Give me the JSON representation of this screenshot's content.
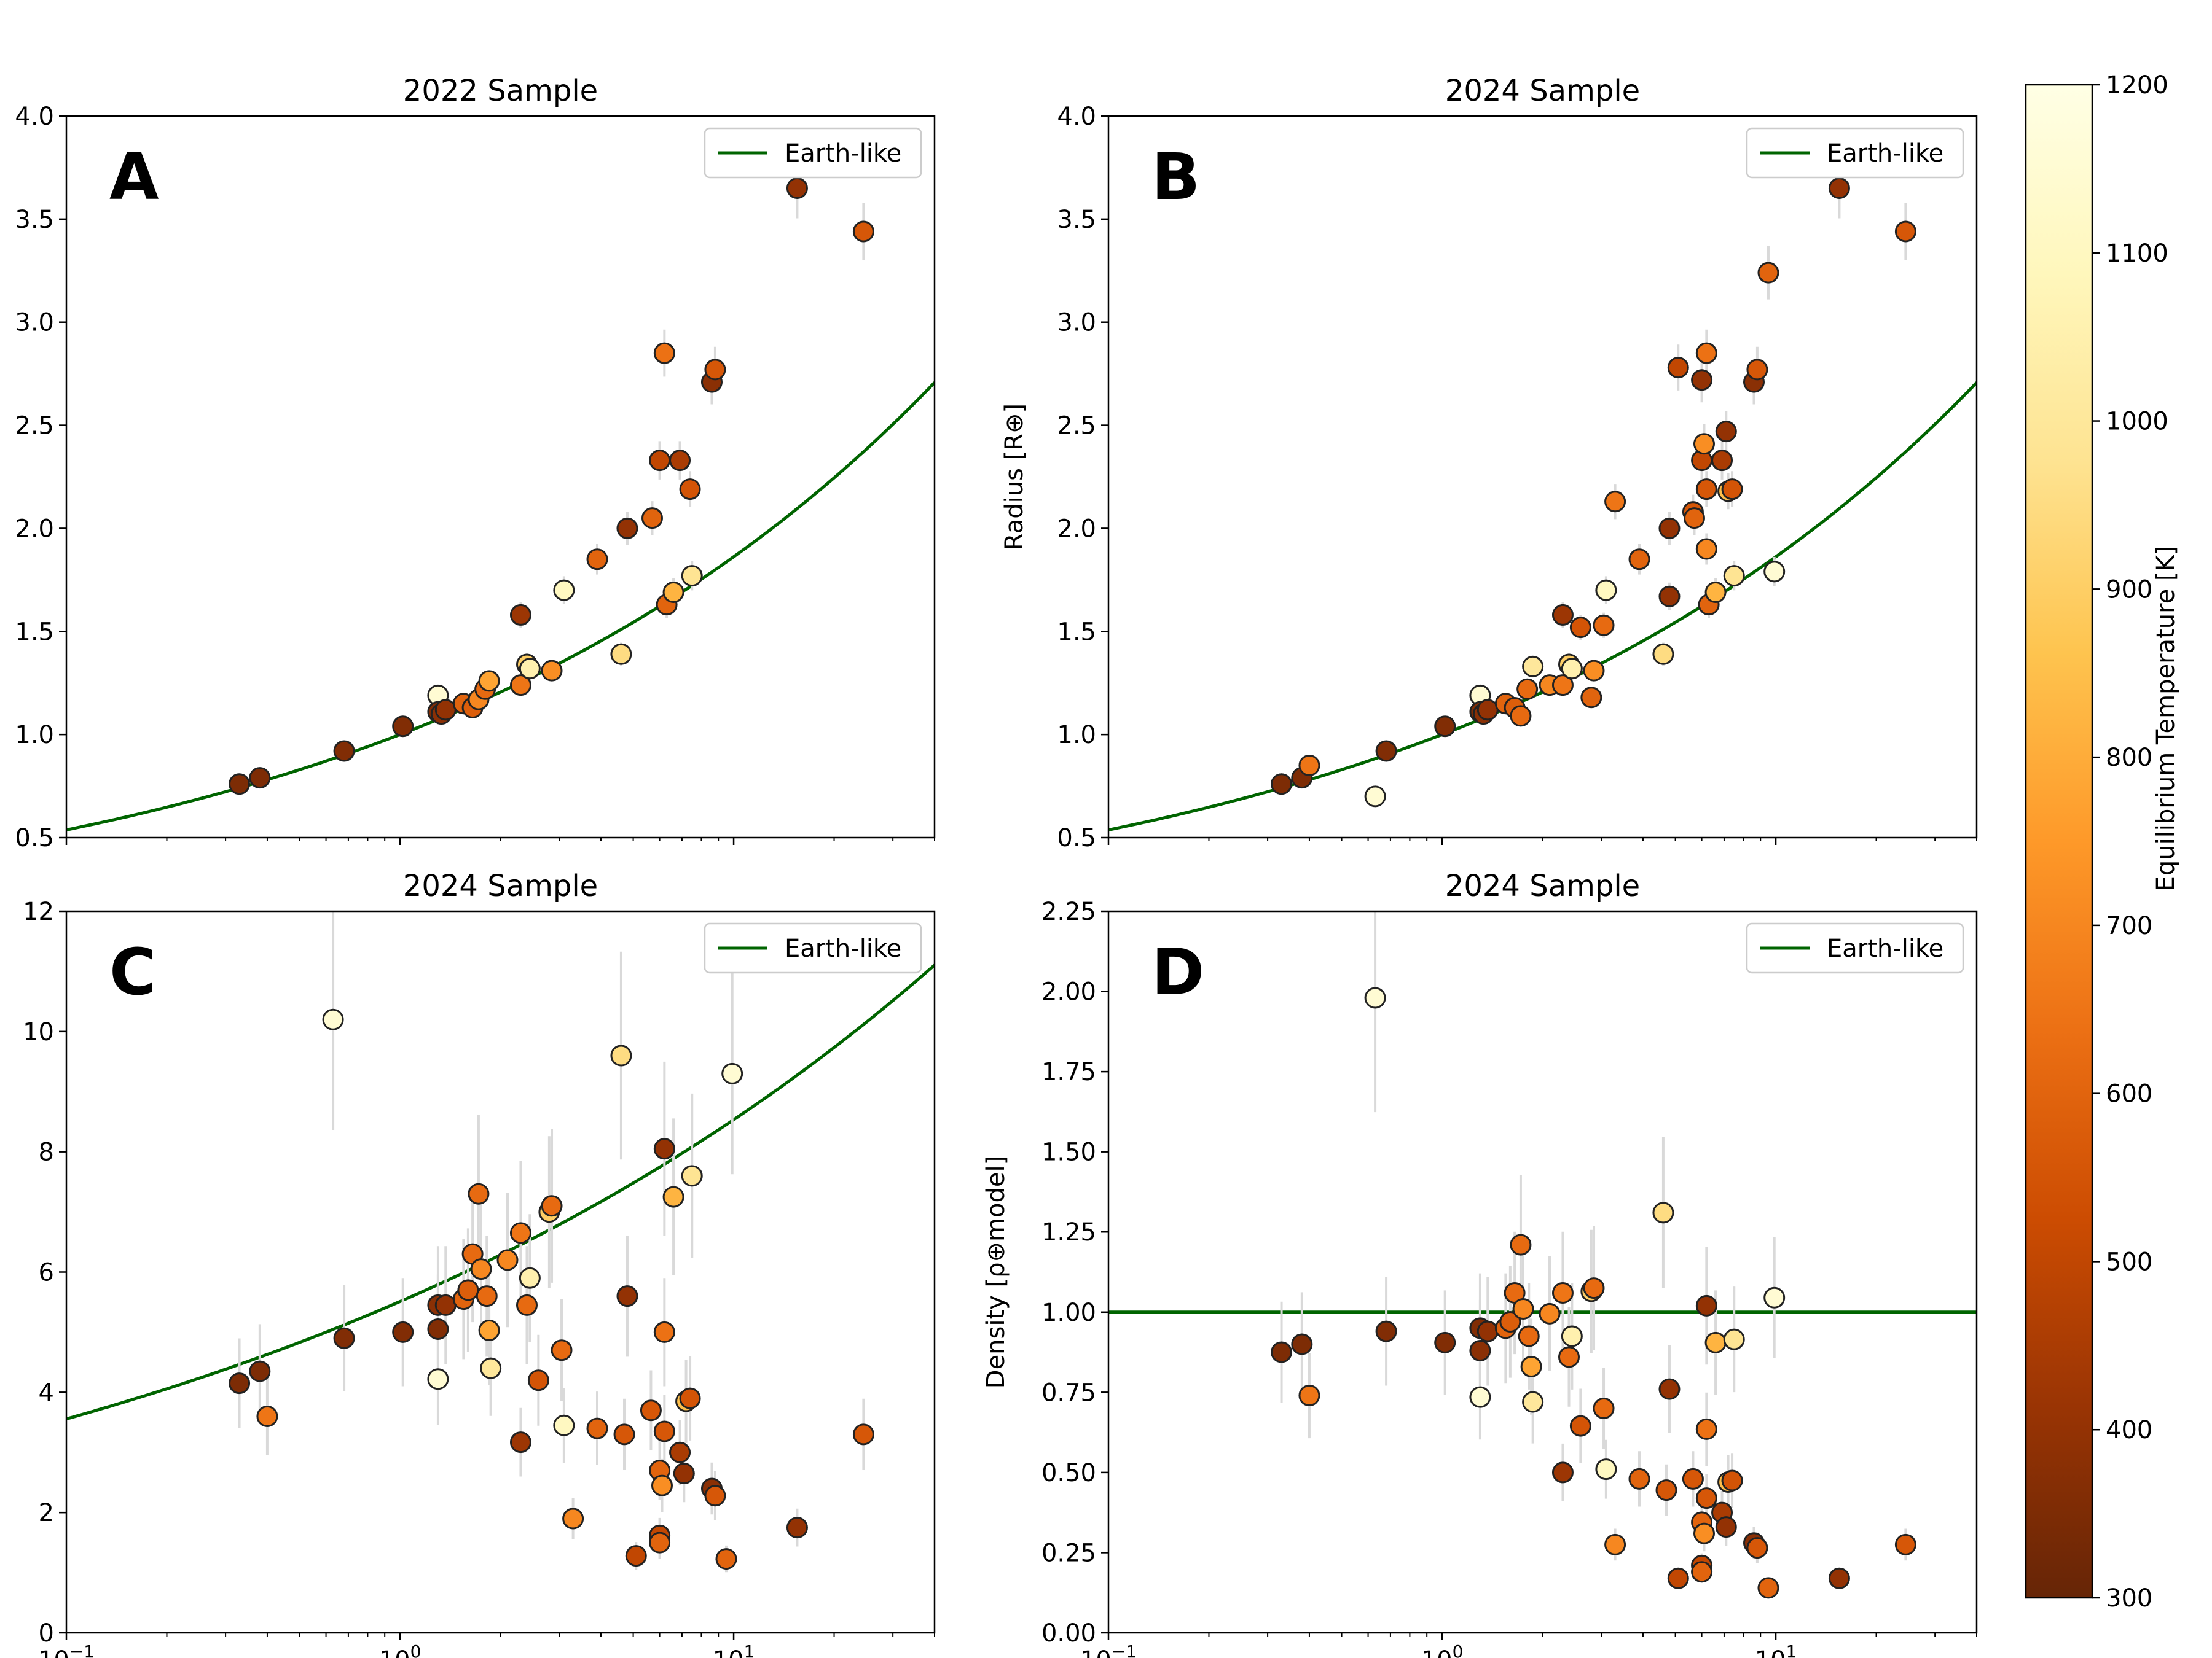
{
  "colorbar": {
    "label": "Equilibrium Temperature [K]",
    "min": 300,
    "max": 1200,
    "ticks": [
      300,
      400,
      500,
      600,
      700,
      800,
      900,
      1000,
      1100,
      1200
    ],
    "colormap": "YlOrBr (reversed)",
    "stops": [
      "#662506",
      "#993404",
      "#cc4c02",
      "#ec7014",
      "#fe9929",
      "#fec44f",
      "#fee391",
      "#fff7bc",
      "#ffffe5"
    ]
  },
  "x_axis": {
    "scale": "log",
    "range": [
      0.1,
      40
    ],
    "tick_labels": [
      {
        "value": 0.1,
        "base": "10",
        "exp": "−1"
      },
      {
        "value": 1,
        "base": "10",
        "exp": "0"
      },
      {
        "value": 10,
        "base": "10",
        "exp": "1"
      }
    ]
  },
  "legend_label": "Earth-like",
  "model_color": "#006400",
  "chart_data": [
    {
      "id": "A",
      "type": "scatter",
      "letter": "A",
      "title": "2022 Sample",
      "ylabel": "",
      "ylim": [
        0.5,
        4.0
      ],
      "ytick_labels": [
        "0.5",
        "1.0",
        "1.5",
        "2.0",
        "2.5",
        "3.0",
        "3.5",
        "4.0"
      ],
      "show_xtick_labels": false,
      "legend": "top-right",
      "model": "radius",
      "points": [
        {
          "x": 0.33,
          "y": 0.76,
          "t": 350
        },
        {
          "x": 0.38,
          "y": 0.79,
          "t": 350
        },
        {
          "x": 0.68,
          "y": 0.92,
          "t": 360
        },
        {
          "x": 1.02,
          "y": 1.04,
          "t": 360
        },
        {
          "x": 1.3,
          "y": 1.19,
          "t": 1150
        },
        {
          "x": 1.3,
          "y": 1.11,
          "t": 360
        },
        {
          "x": 1.33,
          "y": 1.1,
          "t": 380
        },
        {
          "x": 1.37,
          "y": 1.12,
          "t": 400
        },
        {
          "x": 1.55,
          "y": 1.15,
          "t": 600
        },
        {
          "x": 1.65,
          "y": 1.13,
          "t": 580
        },
        {
          "x": 1.72,
          "y": 1.17,
          "t": 700
        },
        {
          "x": 1.8,
          "y": 1.22,
          "t": 620
        },
        {
          "x": 1.85,
          "y": 1.26,
          "t": 780
        },
        {
          "x": 2.3,
          "y": 1.58,
          "t": 420
        },
        {
          "x": 2.3,
          "y": 1.24,
          "t": 650
        },
        {
          "x": 2.4,
          "y": 1.34,
          "t": 900
        },
        {
          "x": 2.45,
          "y": 1.32,
          "t": 1050
        },
        {
          "x": 2.85,
          "y": 1.31,
          "t": 720
        },
        {
          "x": 3.1,
          "y": 1.7,
          "t": 1100
        },
        {
          "x": 3.9,
          "y": 1.85,
          "t": 600
        },
        {
          "x": 4.6,
          "y": 1.39,
          "t": 950
        },
        {
          "x": 4.8,
          "y": 2.0,
          "t": 400
        },
        {
          "x": 5.7,
          "y": 2.05,
          "t": 600
        },
        {
          "x": 6.0,
          "y": 2.33,
          "t": 500
        },
        {
          "x": 6.2,
          "y": 2.85,
          "t": 640
        },
        {
          "x": 6.3,
          "y": 1.63,
          "t": 600
        },
        {
          "x": 6.6,
          "y": 1.69,
          "t": 820
        },
        {
          "x": 6.9,
          "y": 2.33,
          "t": 450
        },
        {
          "x": 7.4,
          "y": 2.19,
          "t": 550
        },
        {
          "x": 7.5,
          "y": 1.77,
          "t": 980
        },
        {
          "x": 8.6,
          "y": 2.71,
          "t": 380
        },
        {
          "x": 8.8,
          "y": 2.77,
          "t": 560
        },
        {
          "x": 15.5,
          "y": 3.65,
          "t": 400
        },
        {
          "x": 24.5,
          "y": 3.44,
          "t": 560
        }
      ]
    },
    {
      "id": "B",
      "type": "scatter",
      "letter": "B",
      "title": "2024 Sample",
      "ylabel": "Radius [R⊕]",
      "ylim": [
        0.5,
        4.0
      ],
      "ytick_labels": [
        "0.5",
        "1.0",
        "1.5",
        "2.0",
        "2.5",
        "3.0",
        "3.5",
        "4.0"
      ],
      "show_xtick_labels": false,
      "legend": "top-right",
      "model": "radius",
      "points": [
        {
          "x": 0.33,
          "y": 0.76,
          "t": 350
        },
        {
          "x": 0.38,
          "y": 0.79,
          "t": 350
        },
        {
          "x": 0.4,
          "y": 0.85,
          "t": 650
        },
        {
          "x": 0.63,
          "y": 0.7,
          "t": 1150
        },
        {
          "x": 0.68,
          "y": 0.92,
          "t": 360
        },
        {
          "x": 1.02,
          "y": 1.04,
          "t": 360
        },
        {
          "x": 1.3,
          "y": 1.19,
          "t": 1150
        },
        {
          "x": 1.3,
          "y": 1.11,
          "t": 360
        },
        {
          "x": 1.33,
          "y": 1.1,
          "t": 380
        },
        {
          "x": 1.37,
          "y": 1.12,
          "t": 400
        },
        {
          "x": 1.55,
          "y": 1.15,
          "t": 600
        },
        {
          "x": 1.65,
          "y": 1.13,
          "t": 580
        },
        {
          "x": 1.72,
          "y": 1.09,
          "t": 620
        },
        {
          "x": 1.8,
          "y": 1.22,
          "t": 620
        },
        {
          "x": 1.87,
          "y": 1.33,
          "t": 1000
        },
        {
          "x": 2.1,
          "y": 1.24,
          "t": 700
        },
        {
          "x": 2.3,
          "y": 1.58,
          "t": 420
        },
        {
          "x": 2.3,
          "y": 1.24,
          "t": 650
        },
        {
          "x": 2.4,
          "y": 1.34,
          "t": 900
        },
        {
          "x": 2.45,
          "y": 1.32,
          "t": 1050
        },
        {
          "x": 2.6,
          "y": 1.52,
          "t": 550
        },
        {
          "x": 2.8,
          "y": 1.18,
          "t": 600
        },
        {
          "x": 2.85,
          "y": 1.31,
          "t": 720
        },
        {
          "x": 3.05,
          "y": 1.53,
          "t": 620
        },
        {
          "x": 3.1,
          "y": 1.7,
          "t": 1100
        },
        {
          "x": 3.3,
          "y": 2.13,
          "t": 650
        },
        {
          "x": 3.9,
          "y": 1.85,
          "t": 600
        },
        {
          "x": 4.6,
          "y": 1.39,
          "t": 950
        },
        {
          "x": 4.8,
          "y": 2.0,
          "t": 400
        },
        {
          "x": 4.8,
          "y": 1.67,
          "t": 400
        },
        {
          "x": 5.1,
          "y": 2.78,
          "t": 500
        },
        {
          "x": 5.65,
          "y": 2.08,
          "t": 560
        },
        {
          "x": 5.7,
          "y": 2.05,
          "t": 600
        },
        {
          "x": 6.0,
          "y": 2.33,
          "t": 500
        },
        {
          "x": 6.0,
          "y": 2.72,
          "t": 400
        },
        {
          "x": 6.1,
          "y": 2.41,
          "t": 720
        },
        {
          "x": 6.2,
          "y": 2.85,
          "t": 640
        },
        {
          "x": 6.2,
          "y": 2.19,
          "t": 560
        },
        {
          "x": 6.2,
          "y": 1.9,
          "t": 700
        },
        {
          "x": 6.3,
          "y": 1.63,
          "t": 600
        },
        {
          "x": 6.6,
          "y": 1.69,
          "t": 820
        },
        {
          "x": 6.9,
          "y": 2.33,
          "t": 450
        },
        {
          "x": 7.1,
          "y": 2.47,
          "t": 400
        },
        {
          "x": 7.2,
          "y": 2.18,
          "t": 850
        },
        {
          "x": 7.4,
          "y": 2.19,
          "t": 550
        },
        {
          "x": 7.5,
          "y": 1.77,
          "t": 980
        },
        {
          "x": 8.6,
          "y": 2.71,
          "t": 380
        },
        {
          "x": 8.8,
          "y": 2.77,
          "t": 560
        },
        {
          "x": 9.5,
          "y": 3.24,
          "t": 600
        },
        {
          "x": 9.9,
          "y": 1.79,
          "t": 1150
        },
        {
          "x": 15.5,
          "y": 3.65,
          "t": 400
        },
        {
          "x": 24.5,
          "y": 3.44,
          "t": 560
        }
      ]
    },
    {
      "id": "C",
      "type": "scatter",
      "letter": "C",
      "title": "2024 Sample",
      "ylabel": "",
      "ylim": [
        0,
        12
      ],
      "ytick_labels": [
        "0",
        "2",
        "4",
        "6",
        "8",
        "10",
        "12"
      ],
      "show_xtick_labels": true,
      "legend": "top-right",
      "model": "mass",
      "points": [
        {
          "x": 0.33,
          "y": 4.15,
          "t": 350
        },
        {
          "x": 0.38,
          "y": 4.35,
          "t": 350
        },
        {
          "x": 0.4,
          "y": 3.6,
          "t": 650
        },
        {
          "x": 0.63,
          "y": 10.2,
          "t": 1150
        },
        {
          "x": 0.68,
          "y": 4.9,
          "t": 360
        },
        {
          "x": 1.02,
          "y": 5.0,
          "t": 360
        },
        {
          "x": 1.3,
          "y": 4.22,
          "t": 1150
        },
        {
          "x": 1.3,
          "y": 5.05,
          "t": 360
        },
        {
          "x": 1.3,
          "y": 5.45,
          "t": 380
        },
        {
          "x": 1.37,
          "y": 5.45,
          "t": 400
        },
        {
          "x": 1.55,
          "y": 5.55,
          "t": 600
        },
        {
          "x": 1.6,
          "y": 5.7,
          "t": 580
        },
        {
          "x": 1.65,
          "y": 6.3,
          "t": 620
        },
        {
          "x": 1.72,
          "y": 7.3,
          "t": 620
        },
        {
          "x": 1.75,
          "y": 6.05,
          "t": 700
        },
        {
          "x": 1.82,
          "y": 5.6,
          "t": 620
        },
        {
          "x": 1.85,
          "y": 5.03,
          "t": 780
        },
        {
          "x": 1.87,
          "y": 4.4,
          "t": 1000
        },
        {
          "x": 2.1,
          "y": 6.2,
          "t": 700
        },
        {
          "x": 2.3,
          "y": 6.65,
          "t": 650
        },
        {
          "x": 2.3,
          "y": 3.17,
          "t": 420
        },
        {
          "x": 2.4,
          "y": 5.45,
          "t": 620
        },
        {
          "x": 2.45,
          "y": 5.9,
          "t": 1050
        },
        {
          "x": 2.6,
          "y": 4.2,
          "t": 550
        },
        {
          "x": 2.8,
          "y": 7.0,
          "t": 900
        },
        {
          "x": 2.85,
          "y": 7.1,
          "t": 620
        },
        {
          "x": 3.05,
          "y": 4.7,
          "t": 620
        },
        {
          "x": 3.1,
          "y": 3.45,
          "t": 1100
        },
        {
          "x": 3.3,
          "y": 1.9,
          "t": 700
        },
        {
          "x": 3.9,
          "y": 3.4,
          "t": 600
        },
        {
          "x": 4.6,
          "y": 9.6,
          "t": 950
        },
        {
          "x": 4.7,
          "y": 3.3,
          "t": 560
        },
        {
          "x": 4.8,
          "y": 5.6,
          "t": 400
        },
        {
          "x": 5.1,
          "y": 1.28,
          "t": 500
        },
        {
          "x": 5.65,
          "y": 3.7,
          "t": 560
        },
        {
          "x": 6.0,
          "y": 2.7,
          "t": 600
        },
        {
          "x": 6.0,
          "y": 1.62,
          "t": 500
        },
        {
          "x": 6.0,
          "y": 1.5,
          "t": 600
        },
        {
          "x": 6.1,
          "y": 2.45,
          "t": 720
        },
        {
          "x": 6.2,
          "y": 8.05,
          "t": 400
        },
        {
          "x": 6.2,
          "y": 5.0,
          "t": 640
        },
        {
          "x": 6.2,
          "y": 3.35,
          "t": 560
        },
        {
          "x": 6.6,
          "y": 7.25,
          "t": 820
        },
        {
          "x": 6.9,
          "y": 3.0,
          "t": 450
        },
        {
          "x": 7.1,
          "y": 2.65,
          "t": 400
        },
        {
          "x": 7.2,
          "y": 3.85,
          "t": 850
        },
        {
          "x": 7.4,
          "y": 3.9,
          "t": 550
        },
        {
          "x": 7.5,
          "y": 7.6,
          "t": 980
        },
        {
          "x": 8.6,
          "y": 2.4,
          "t": 380
        },
        {
          "x": 8.8,
          "y": 2.28,
          "t": 560
        },
        {
          "x": 9.5,
          "y": 1.23,
          "t": 600
        },
        {
          "x": 9.9,
          "y": 9.3,
          "t": 1150
        },
        {
          "x": 15.5,
          "y": 1.75,
          "t": 400
        },
        {
          "x": 24.5,
          "y": 3.3,
          "t": 560
        }
      ]
    },
    {
      "id": "D",
      "type": "scatter",
      "letter": "D",
      "title": "2024 Sample",
      "ylabel": "Density [ρ⊕model]",
      "ylim": [
        0,
        2.25
      ],
      "ytick_labels": [
        "0.00",
        "0.25",
        "0.50",
        "0.75",
        "1.00",
        "1.25",
        "1.50",
        "1.75",
        "2.00",
        "2.25"
      ],
      "show_xtick_labels": true,
      "legend": "top-right",
      "model": "density",
      "points": [
        {
          "x": 0.33,
          "y": 0.875,
          "t": 350
        },
        {
          "x": 0.38,
          "y": 0.9,
          "t": 350
        },
        {
          "x": 0.4,
          "y": 0.74,
          "t": 650
        },
        {
          "x": 0.63,
          "y": 1.98,
          "t": 1150
        },
        {
          "x": 0.68,
          "y": 0.94,
          "t": 360
        },
        {
          "x": 1.02,
          "y": 0.905,
          "t": 360
        },
        {
          "x": 1.3,
          "y": 0.735,
          "t": 1150
        },
        {
          "x": 1.3,
          "y": 0.95,
          "t": 360
        },
        {
          "x": 1.3,
          "y": 0.88,
          "t": 380
        },
        {
          "x": 1.37,
          "y": 0.94,
          "t": 400
        },
        {
          "x": 1.55,
          "y": 0.95,
          "t": 600
        },
        {
          "x": 1.6,
          "y": 0.97,
          "t": 580
        },
        {
          "x": 1.65,
          "y": 1.06,
          "t": 620
        },
        {
          "x": 1.72,
          "y": 1.21,
          "t": 620
        },
        {
          "x": 1.75,
          "y": 1.01,
          "t": 700
        },
        {
          "x": 1.82,
          "y": 0.925,
          "t": 620
        },
        {
          "x": 1.85,
          "y": 0.83,
          "t": 780
        },
        {
          "x": 1.87,
          "y": 0.72,
          "t": 1000
        },
        {
          "x": 2.1,
          "y": 0.995,
          "t": 700
        },
        {
          "x": 2.3,
          "y": 1.06,
          "t": 650
        },
        {
          "x": 2.3,
          "y": 0.5,
          "t": 420
        },
        {
          "x": 2.4,
          "y": 0.86,
          "t": 620
        },
        {
          "x": 2.45,
          "y": 0.925,
          "t": 1050
        },
        {
          "x": 2.6,
          "y": 0.645,
          "t": 550
        },
        {
          "x": 2.8,
          "y": 1.065,
          "t": 900
        },
        {
          "x": 2.85,
          "y": 1.075,
          "t": 620
        },
        {
          "x": 3.05,
          "y": 0.7,
          "t": 620
        },
        {
          "x": 3.1,
          "y": 0.51,
          "t": 1100
        },
        {
          "x": 3.3,
          "y": 0.275,
          "t": 700
        },
        {
          "x": 3.9,
          "y": 0.48,
          "t": 600
        },
        {
          "x": 4.6,
          "y": 1.31,
          "t": 950
        },
        {
          "x": 4.7,
          "y": 0.445,
          "t": 560
        },
        {
          "x": 4.8,
          "y": 0.76,
          "t": 400
        },
        {
          "x": 5.1,
          "y": 0.17,
          "t": 500
        },
        {
          "x": 5.65,
          "y": 0.48,
          "t": 560
        },
        {
          "x": 6.0,
          "y": 0.345,
          "t": 600
        },
        {
          "x": 6.0,
          "y": 0.21,
          "t": 500
        },
        {
          "x": 6.0,
          "y": 0.19,
          "t": 600
        },
        {
          "x": 6.1,
          "y": 0.31,
          "t": 720
        },
        {
          "x": 6.2,
          "y": 1.02,
          "t": 400
        },
        {
          "x": 6.2,
          "y": 0.635,
          "t": 640
        },
        {
          "x": 6.2,
          "y": 0.42,
          "t": 560
        },
        {
          "x": 6.6,
          "y": 0.905,
          "t": 820
        },
        {
          "x": 6.9,
          "y": 0.375,
          "t": 450
        },
        {
          "x": 7.1,
          "y": 0.33,
          "t": 400
        },
        {
          "x": 7.2,
          "y": 0.47,
          "t": 850
        },
        {
          "x": 7.4,
          "y": 0.475,
          "t": 550
        },
        {
          "x": 7.5,
          "y": 0.915,
          "t": 980
        },
        {
          "x": 8.6,
          "y": 0.28,
          "t": 380
        },
        {
          "x": 8.8,
          "y": 0.265,
          "t": 560
        },
        {
          "x": 9.5,
          "y": 0.14,
          "t": 600
        },
        {
          "x": 9.9,
          "y": 1.045,
          "t": 1150
        },
        {
          "x": 15.5,
          "y": 0.17,
          "t": 400
        },
        {
          "x": 24.5,
          "y": 0.275,
          "t": 560
        }
      ]
    }
  ]
}
